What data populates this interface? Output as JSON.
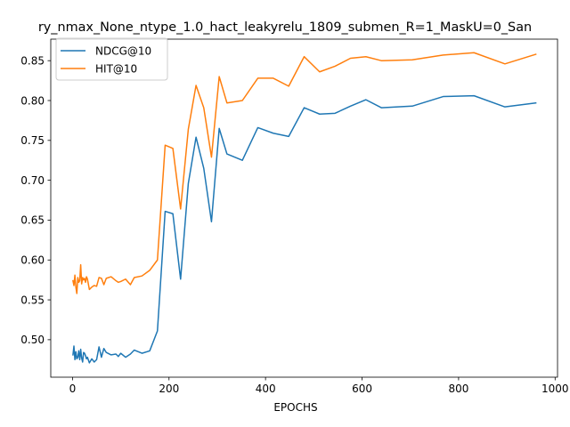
{
  "chart_data": {
    "type": "line",
    "title": "ry_nmax_None_ntype_1.0_hact_leakyrelu_1809_submen_R=1_MaskU=0_San",
    "xlabel": "EPOCHS",
    "ylabel": "",
    "xlim": [
      -45,
      1005
    ],
    "ylim": [
      0.453,
      0.877
    ],
    "xticks": [
      0,
      200,
      400,
      600,
      800,
      1000
    ],
    "yticks": [
      0.5,
      0.55,
      0.6,
      0.65,
      0.7,
      0.75,
      0.8,
      0.85
    ],
    "grid": false,
    "legend": "upper left",
    "series": [
      {
        "name": "NDCG@10",
        "color": "#1f77b4",
        "x": [
          1,
          3,
          5,
          7,
          9,
          11,
          13,
          15,
          17,
          19,
          21,
          23,
          25,
          27,
          29,
          31,
          35,
          40,
          45,
          50,
          55,
          60,
          65,
          70,
          80,
          90,
          95,
          100,
          110,
          120,
          128,
          144,
          160,
          176,
          192,
          208,
          224,
          240,
          256,
          272,
          288,
          304,
          320,
          352,
          384,
          416,
          448,
          480,
          512,
          544,
          576,
          608,
          640,
          704,
          768,
          832,
          896,
          960
        ],
        "y": [
          0.481,
          0.492,
          0.475,
          0.485,
          0.476,
          0.478,
          0.486,
          0.475,
          0.488,
          0.477,
          0.472,
          0.484,
          0.483,
          0.48,
          0.476,
          0.478,
          0.471,
          0.476,
          0.472,
          0.475,
          0.491,
          0.478,
          0.489,
          0.484,
          0.481,
          0.482,
          0.479,
          0.483,
          0.478,
          0.482,
          0.487,
          0.483,
          0.486,
          0.511,
          0.661,
          0.658,
          0.576,
          0.696,
          0.754,
          0.715,
          0.648,
          0.765,
          0.733,
          0.725,
          0.766,
          0.759,
          0.755,
          0.791,
          0.783,
          0.784,
          0.793,
          0.801,
          0.791,
          0.793,
          0.805,
          0.806,
          0.792,
          0.797
        ]
      },
      {
        "name": "HIT@10",
        "color": "#ff7f0e",
        "x": [
          1,
          3,
          5,
          7,
          9,
          11,
          13,
          15,
          17,
          19,
          21,
          23,
          25,
          27,
          29,
          31,
          35,
          40,
          45,
          50,
          55,
          60,
          65,
          70,
          80,
          90,
          95,
          100,
          110,
          120,
          128,
          144,
          160,
          176,
          192,
          208,
          224,
          240,
          256,
          272,
          288,
          304,
          320,
          352,
          384,
          416,
          448,
          480,
          512,
          544,
          576,
          608,
          640,
          704,
          768,
          832,
          896,
          960
        ],
        "y": [
          0.574,
          0.568,
          0.581,
          0.566,
          0.558,
          0.578,
          0.572,
          0.574,
          0.594,
          0.57,
          0.578,
          0.575,
          0.577,
          0.572,
          0.579,
          0.576,
          0.563,
          0.566,
          0.568,
          0.567,
          0.578,
          0.577,
          0.569,
          0.577,
          0.579,
          0.574,
          0.572,
          0.573,
          0.576,
          0.569,
          0.578,
          0.58,
          0.587,
          0.6,
          0.744,
          0.74,
          0.664,
          0.764,
          0.819,
          0.791,
          0.729,
          0.83,
          0.797,
          0.8,
          0.828,
          0.828,
          0.818,
          0.855,
          0.836,
          0.843,
          0.853,
          0.855,
          0.85,
          0.851,
          0.857,
          0.86,
          0.846,
          0.858
        ]
      }
    ]
  }
}
